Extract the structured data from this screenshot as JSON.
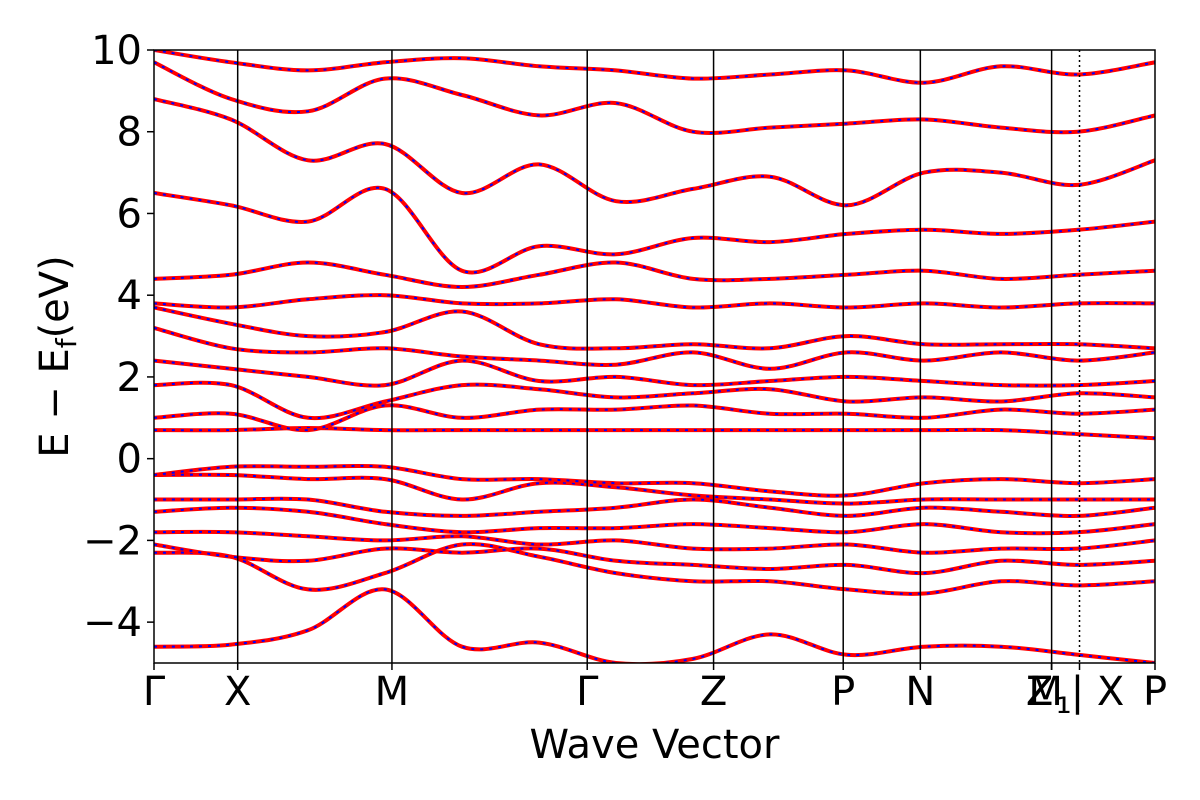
{
  "chart_data": {
    "type": "line",
    "title": "",
    "xlabel": "Wave Vector",
    "ylabel": "E − E",
    "ylabel_subscript": "f",
    "ylabel_unit": "(eV)",
    "ylim": [
      -5,
      10
    ],
    "yticks": [
      -4,
      -2,
      0,
      2,
      4,
      6,
      8,
      10
    ],
    "ytick_labels": [
      "−4",
      "−2",
      "0",
      "2",
      "4",
      "6",
      "8",
      "10"
    ],
    "xlim": [
      0,
      6.1
    ],
    "kpoints": [
      {
        "label": "Γ",
        "x": 0.0
      },
      {
        "label": "X",
        "x": 0.51
      },
      {
        "label": "M",
        "x": 1.45
      },
      {
        "label": "Γ",
        "x": 2.64
      },
      {
        "label": "Z",
        "x": 3.41
      },
      {
        "label": "P",
        "x": 4.2
      },
      {
        "label": "N",
        "x": 4.67
      },
      {
        "label": "Z",
        "x": 5.47
      },
      {
        "label": "M",
        "x": 5.47
      },
      {
        "label": "₁",
        "x": 5.47
      },
      {
        "label": "| X",
        "x": 5.64
      },
      {
        "label": "P",
        "x": 6.1
      }
    ],
    "path_break_x": 5.64,
    "grid": false,
    "series": [
      {
        "color": "#ff0000",
        "style": "solid"
      },
      {
        "color": "#0000ff",
        "style": "dotted"
      }
    ],
    "band_nodes": [
      [
        -4.6,
        -4.55,
        -4.2,
        -3.2,
        -4.6,
        -4.5,
        -5.0,
        -4.9,
        -4.3,
        -4.8,
        -4.6,
        -4.6,
        -4.8,
        -5.0
      ],
      [
        -2.3,
        -2.4,
        -3.2,
        -2.8,
        -2.1,
        -2.4,
        -2.8,
        -3.0,
        -3.0,
        -3.2,
        -3.3,
        -3.0,
        -3.1,
        -3.0
      ],
      [
        -2.1,
        -2.4,
        -2.5,
        -2.2,
        -2.3,
        -2.2,
        -2.5,
        -2.6,
        -2.7,
        -2.6,
        -2.8,
        -2.5,
        -2.6,
        -2.5
      ],
      [
        -1.8,
        -1.8,
        -1.9,
        -2.0,
        -1.9,
        -2.1,
        -2.0,
        -2.2,
        -2.2,
        -2.1,
        -2.3,
        -2.2,
        -2.2,
        -2.0
      ],
      [
        -1.3,
        -1.2,
        -1.3,
        -1.6,
        -1.8,
        -1.7,
        -1.7,
        -1.6,
        -1.7,
        -1.8,
        -1.6,
        -1.8,
        -1.8,
        -1.6
      ],
      [
        -1.0,
        -1.0,
        -1.0,
        -1.3,
        -1.4,
        -1.3,
        -1.2,
        -1.0,
        -1.2,
        -1.4,
        -1.2,
        -1.3,
        -1.4,
        -1.2
      ],
      [
        -0.4,
        -0.4,
        -0.5,
        -0.5,
        -1.0,
        -0.6,
        -0.7,
        -0.9,
        -1.0,
        -1.1,
        -1.0,
        -1.0,
        -1.0,
        -1.0
      ],
      [
        -0.4,
        -0.2,
        -0.2,
        -0.2,
        -0.5,
        -0.5,
        -0.6,
        -0.6,
        -0.8,
        -0.9,
        -0.6,
        -0.5,
        -0.6,
        -0.5
      ],
      [
        0.7,
        0.7,
        0.75,
        0.7,
        0.7,
        0.7,
        0.7,
        0.7,
        0.7,
        0.7,
        0.7,
        0.7,
        0.6,
        0.5
      ],
      [
        1.0,
        1.1,
        0.7,
        1.3,
        1.0,
        1.2,
        1.2,
        1.3,
        1.1,
        1.1,
        1.0,
        1.2,
        1.1,
        1.2
      ],
      [
        1.8,
        1.8,
        1.0,
        1.4,
        1.8,
        1.7,
        1.5,
        1.6,
        1.7,
        1.4,
        1.5,
        1.4,
        1.6,
        1.5
      ],
      [
        2.4,
        2.2,
        2.0,
        1.8,
        2.4,
        1.9,
        2.0,
        1.8,
        1.9,
        2.0,
        1.9,
        1.8,
        1.8,
        1.9
      ],
      [
        3.2,
        2.7,
        2.6,
        2.7,
        2.5,
        2.4,
        2.3,
        2.6,
        2.2,
        2.6,
        2.4,
        2.6,
        2.4,
        2.6
      ],
      [
        3.7,
        3.3,
        3.0,
        3.1,
        3.6,
        2.8,
        2.7,
        2.8,
        2.7,
        3.0,
        2.8,
        2.8,
        2.8,
        2.7
      ],
      [
        3.8,
        3.7,
        3.9,
        4.0,
        3.8,
        3.8,
        3.9,
        3.7,
        3.8,
        3.7,
        3.8,
        3.7,
        3.8,
        3.8
      ],
      [
        4.4,
        4.5,
        4.8,
        4.5,
        4.2,
        4.5,
        4.8,
        4.4,
        4.4,
        4.5,
        4.6,
        4.4,
        4.5,
        4.6
      ],
      [
        6.5,
        6.2,
        5.8,
        6.6,
        4.6,
        5.2,
        5.0,
        5.4,
        5.3,
        5.5,
        5.6,
        5.5,
        5.6,
        5.8
      ],
      [
        8.8,
        8.3,
        7.3,
        7.7,
        6.5,
        7.2,
        6.3,
        6.6,
        6.9,
        6.2,
        7.0,
        7.0,
        6.7,
        7.3
      ],
      [
        9.7,
        8.8,
        8.5,
        9.3,
        8.9,
        8.4,
        8.7,
        8.0,
        8.1,
        8.2,
        8.3,
        8.1,
        8.0,
        8.4
      ],
      [
        10.0,
        9.7,
        9.5,
        9.7,
        9.8,
        9.6,
        9.5,
        9.3,
        9.4,
        9.5,
        9.2,
        9.6,
        9.4,
        9.7
      ]
    ]
  }
}
